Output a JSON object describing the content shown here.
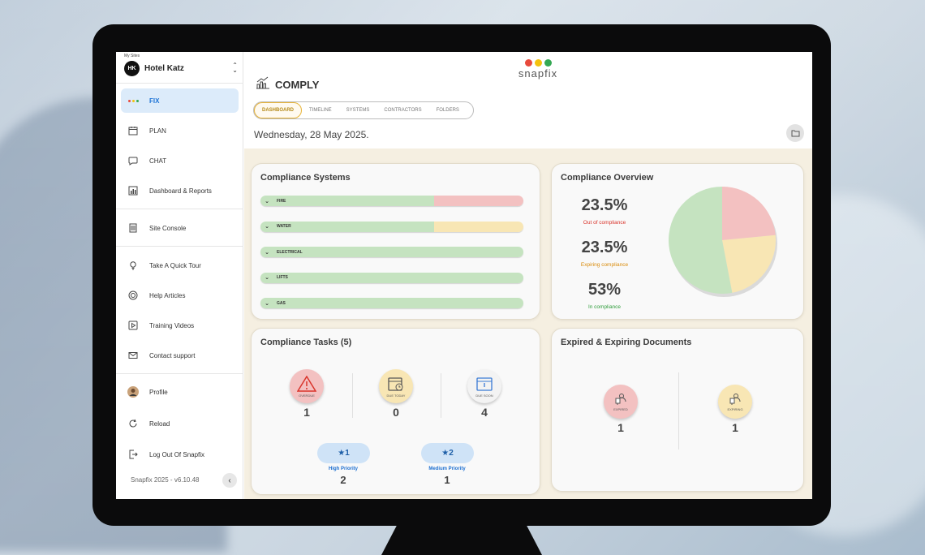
{
  "sidebar": {
    "my_sites_label": "My Sites",
    "site_initials": "HK",
    "site_name": "Hotel Katz",
    "items": [
      {
        "label": "FIX",
        "icon": "three-dots-icon",
        "active": true
      },
      {
        "label": "PLAN",
        "icon": "calendar-icon"
      },
      {
        "label": "CHAT",
        "icon": "chat-bubble-icon"
      },
      {
        "label": "Dashboard & Reports",
        "icon": "bar-chart-icon"
      },
      {
        "label": "Site Console",
        "icon": "building-icon"
      },
      {
        "label": "Take A Quick Tour",
        "icon": "lightbulb-icon"
      },
      {
        "label": "Help Articles",
        "icon": "lifebuoy-icon"
      },
      {
        "label": "Training Videos",
        "icon": "play-icon"
      },
      {
        "label": "Contact support",
        "icon": "mail-icon"
      },
      {
        "label": "Profile",
        "icon": "avatar-icon"
      },
      {
        "label": "Reload",
        "icon": "reload-icon"
      },
      {
        "label": "Log Out Of Snapfix",
        "icon": "logout-icon"
      }
    ],
    "version": "Snapfix 2025  -  v6.10.48"
  },
  "header": {
    "logo_text": "snapfix",
    "section_title": "COMPLY",
    "tabs": [
      "DASHBOARD",
      "TIMELINE",
      "SYSTEMS",
      "CONTRACTORS",
      "FOLDERS"
    ],
    "active_tab": "DASHBOARD",
    "date": "Wednesday, 28 May 2025."
  },
  "colors": {
    "green": "#c5e3c0",
    "red": "#f3c1c1",
    "yellow": "#f8e6b4",
    "accent_blue": "#1d73d6",
    "logo_red": "#e84a3c",
    "logo_yellow": "#f4c20d",
    "logo_green": "#34a853"
  },
  "compliance_systems": {
    "title": "Compliance Systems",
    "systems": [
      {
        "name": "FIRE",
        "in_compliance": 0.66,
        "status_color": "red"
      },
      {
        "name": "WATER",
        "in_compliance": 0.66,
        "status_color": "yellow"
      },
      {
        "name": "ELECTRICAL",
        "in_compliance": 1.0,
        "status_color": "green"
      },
      {
        "name": "LIFTS",
        "in_compliance": 1.0,
        "status_color": "green"
      },
      {
        "name": "GAS",
        "in_compliance": 1.0,
        "status_color": "green"
      }
    ]
  },
  "compliance_overview": {
    "title": "Compliance Overview",
    "stats": [
      {
        "value": "23.5%",
        "label": "Out of compliance",
        "color": "#d9342b"
      },
      {
        "value": "23.5%",
        "label": "Expiring compliance",
        "color": "#d98b0a"
      },
      {
        "value": "53%",
        "label": "In compliance",
        "color": "#2e9c3a"
      }
    ],
    "chart_data": {
      "type": "pie",
      "categories": [
        "Out of compliance",
        "Expiring compliance",
        "In compliance"
      ],
      "values": [
        23.5,
        23.5,
        53
      ],
      "colors": [
        "#f3c1c1",
        "#f8e6b4",
        "#c5e3c0"
      ]
    }
  },
  "compliance_tasks": {
    "title": "Compliance Tasks (5)",
    "tasks": [
      {
        "label": "OVERDUE",
        "count": "1",
        "icon": "warning-icon",
        "bg": "#f3c1c1"
      },
      {
        "label": "DUE TODAY",
        "count": "0",
        "icon": "calendar-clock-icon",
        "bg": "#f8e6b4"
      },
      {
        "label": "DUE SOON",
        "count": "4",
        "icon": "calendar-alert-icon",
        "bg": "#f3f3f3"
      }
    ],
    "priorities": [
      {
        "pill": "★1",
        "label": "High Priority",
        "count": "2"
      },
      {
        "pill": "★2",
        "label": "Medium Priority",
        "count": "1"
      }
    ]
  },
  "documents": {
    "title": "Expired & Expiring Documents",
    "items": [
      {
        "label": "EXPIRED",
        "count": "1",
        "bg": "#f3c1c1"
      },
      {
        "label": "EXPIRING",
        "count": "1",
        "bg": "#f8e6b4"
      }
    ]
  }
}
